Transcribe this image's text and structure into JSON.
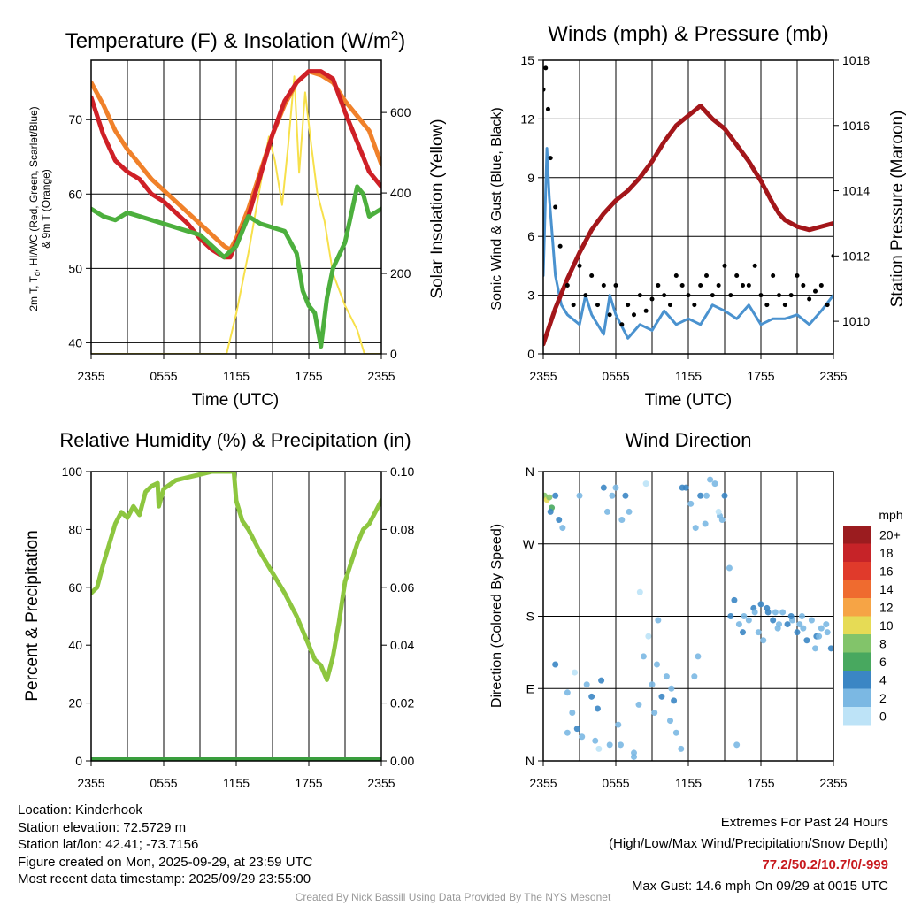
{
  "charts": {
    "temp": {
      "title": "Temperature (F) & Insolation (W/m",
      "title_sup": "2",
      "title_end": ")",
      "xlabel": "Time (UTC)",
      "ylabel_left_line1": "2m T, T",
      "ylabel_left_sub": "d",
      "ylabel_left_rest": ", HI/WC (Red, Green, Scarlet/Blue)",
      "ylabel_left_line2": "& 9m T (Orange)",
      "ylabel_right": "Solar Insolation (Yellow)"
    },
    "wind": {
      "title": "Winds (mph) & Pressure (mb)",
      "xlabel": "Time (UTC)",
      "ylabel_left": "Sonic Wind & Gust (Blue, Black)",
      "ylabel_right": "Station Pressure (Maroon)"
    },
    "rh": {
      "title": "Relative Humidity (%) & Precipitation (in)",
      "ylabel_left": "Percent & Precipitation"
    },
    "dir": {
      "title": "Wind Direction",
      "ylabel_left": "Direction (Colored By Speed)",
      "legend_title": "mph"
    }
  },
  "chart_data": [
    {
      "id": "temp",
      "type": "line",
      "title": "Temperature (F) & Insolation (W/m2)",
      "x_ticks": [
        "2355",
        "0555",
        "1155",
        "1755",
        "2355"
      ],
      "hours_span": 24,
      "ylim": [
        38.5,
        78
      ],
      "y_ticks": [
        "40",
        "50",
        "60",
        "70"
      ],
      "y_tick_values": [
        40,
        50,
        60,
        70
      ],
      "y2lim": [
        0,
        730
      ],
      "y2_ticks": [
        "0",
        "200",
        "400",
        "600"
      ],
      "y2_tick_values": [
        0,
        200,
        400,
        600
      ],
      "series": [
        {
          "name": "9m T",
          "color": "#f0812a",
          "axis": "left",
          "x": [
            0,
            1,
            2,
            3,
            4,
            5,
            6,
            7,
            8,
            9,
            10,
            11,
            11.5,
            12,
            13,
            14,
            15,
            16,
            17,
            18,
            19,
            20,
            21,
            22,
            23,
            24
          ],
          "values": [
            75,
            72,
            68.5,
            66,
            64,
            62,
            60.5,
            59,
            57.5,
            56,
            54.5,
            53,
            52.5,
            54,
            58,
            63,
            68,
            72,
            75,
            76.5,
            76,
            75,
            72.5,
            70.5,
            68.5,
            64
          ]
        },
        {
          "name": "2m T",
          "color": "#cf2027",
          "axis": "left",
          "x": [
            0,
            1,
            2,
            3,
            4,
            5,
            6,
            7,
            8,
            9,
            10,
            11,
            11.5,
            12,
            13,
            14,
            15,
            16,
            17,
            18,
            19,
            20,
            21,
            22,
            23,
            24
          ],
          "values": [
            73,
            68,
            64.5,
            63,
            62,
            60,
            59,
            57.5,
            56,
            54,
            52.5,
            51.5,
            51.5,
            53.5,
            57,
            62.5,
            68,
            72.5,
            75,
            76.5,
            76.5,
            75.5,
            71,
            67,
            63,
            61
          ]
        },
        {
          "name": "Td",
          "color": "#4caf3d",
          "axis": "left",
          "x": [
            0,
            1,
            2,
            3,
            4,
            5,
            6,
            7,
            8,
            9,
            10,
            11,
            12,
            13,
            14,
            15,
            16,
            17,
            17.5,
            18,
            18.5,
            19,
            19.5,
            20,
            21,
            22,
            22.5,
            23,
            24
          ],
          "values": [
            58,
            57,
            56.5,
            57.5,
            57,
            56.5,
            56,
            55.5,
            55,
            54.5,
            53,
            51.5,
            53,
            57,
            56,
            55.5,
            55,
            52,
            47,
            45,
            44,
            39.5,
            46,
            50,
            53.5,
            61,
            60,
            57,
            58
          ]
        },
        {
          "name": "Solar Insolation",
          "color": "#f7e04b",
          "axis": "right",
          "x": [
            0,
            11.2,
            12,
            13,
            14,
            14.7,
            15.2,
            15.8,
            16.3,
            16.8,
            17.2,
            17.7,
            18.2,
            18.7,
            19.3,
            20,
            21,
            22,
            22.6,
            24
          ],
          "values": [
            0,
            0,
            100,
            250,
            420,
            540,
            480,
            370,
            520,
            690,
            450,
            650,
            520,
            400,
            330,
            200,
            120,
            60,
            0,
            0
          ]
        }
      ]
    },
    {
      "id": "wind",
      "type": "scatter",
      "title": "Winds (mph) & Pressure (mb)",
      "x_ticks": [
        "2355",
        "0555",
        "1155",
        "1755",
        "2355"
      ],
      "hours_span": 24,
      "ylim": [
        0,
        15
      ],
      "y_ticks": [
        "0",
        "3",
        "6",
        "9",
        "12",
        "15"
      ],
      "y_tick_values": [
        0,
        3,
        6,
        9,
        12,
        15
      ],
      "y2lim": [
        1009,
        1018
      ],
      "y2_ticks": [
        "1010",
        "1012",
        "1014",
        "1016",
        "1018"
      ],
      "y2_tick_values": [
        1010,
        1012,
        1014,
        1016,
        1018
      ],
      "series": [
        {
          "name": "Station Pressure",
          "color": "#a3161a",
          "axis": "right",
          "x": [
            0,
            1,
            2,
            3,
            4,
            5,
            6,
            7,
            8,
            9,
            10,
            11,
            12,
            13,
            14,
            15,
            16,
            17,
            18,
            19,
            19.5,
            20,
            21,
            22,
            23,
            24
          ],
          "values": [
            1009.3,
            1010.4,
            1011.3,
            1012.1,
            1012.8,
            1013.3,
            1013.7,
            1014.0,
            1014.4,
            1014.9,
            1015.5,
            1016.0,
            1016.3,
            1016.6,
            1016.2,
            1015.9,
            1015.4,
            1014.9,
            1014.3,
            1013.6,
            1013.3,
            1013.1,
            1012.9,
            1012.8,
            1012.9,
            1013.0
          ]
        },
        {
          "name": "Sonic Wind",
          "color": "#4a92cf",
          "axis": "left",
          "x": [
            0,
            0.3,
            0.5,
            1,
            1.5,
            2,
            3,
            3.5,
            4,
            5,
            5.5,
            6,
            7,
            8,
            9,
            10,
            11,
            12,
            13,
            14,
            15,
            16,
            17,
            18,
            19,
            20,
            21,
            22,
            23,
            24
          ],
          "values": [
            4,
            10.5,
            8,
            4,
            2.5,
            2,
            1.5,
            3,
            2,
            1,
            3,
            2,
            0.8,
            1.5,
            1.2,
            2.2,
            1.5,
            1.8,
            1.5,
            2.5,
            2.2,
            1.8,
            2.5,
            1.5,
            1.8,
            1.8,
            2.0,
            1.5,
            2.2,
            3
          ]
        },
        {
          "name": "Gust",
          "color": "#000000",
          "axis": "left",
          "x": [
            0,
            0.2,
            0.4,
            0.6,
            1,
            1.4,
            2,
            2.5,
            3,
            3.5,
            4,
            4.5,
            5,
            5.5,
            6,
            6.5,
            7,
            7.5,
            8,
            8.5,
            9,
            9.5,
            10,
            10.5,
            11,
            11.5,
            12,
            12.5,
            13,
            13.5,
            14,
            14.5,
            15,
            15.5,
            16,
            16.5,
            17,
            17.5,
            18,
            18.5,
            19,
            19.5,
            20,
            20.5,
            21,
            21.5,
            22,
            22.5,
            23,
            23.5,
            24
          ],
          "values": [
            13.5,
            14.6,
            12.5,
            10,
            7.5,
            5.5,
            3.5,
            2.5,
            4.5,
            3,
            4,
            2.5,
            3.5,
            2,
            3.5,
            1.5,
            2.5,
            2,
            3,
            2.2,
            2.8,
            3.5,
            3,
            2.5,
            4,
            3.5,
            3,
            2.5,
            3.5,
            4,
            3,
            3.5,
            4.5,
            3,
            4,
            3.5,
            3.5,
            4.5,
            3,
            2.5,
            4,
            3,
            2.5,
            3,
            4,
            3.5,
            2.8,
            3.2,
            3.5,
            2.5,
            5
          ]
        }
      ]
    },
    {
      "id": "rh",
      "type": "line",
      "title": "Relative Humidity (%) & Precipitation (in)",
      "x_ticks": [
        "2355",
        "0555",
        "1155",
        "1755",
        "2355"
      ],
      "hours_span": 24,
      "ylim": [
        0,
        100
      ],
      "y_ticks": [
        "0",
        "20",
        "40",
        "60",
        "80",
        "100"
      ],
      "y_tick_values": [
        0,
        20,
        40,
        60,
        80,
        100
      ],
      "y2lim": [
        0,
        0.1
      ],
      "y2_ticks": [
        "0.00",
        "0.02",
        "0.04",
        "0.06",
        "0.08",
        "0.10"
      ],
      "y2_tick_values": [
        0,
        0.02,
        0.04,
        0.06,
        0.08,
        0.1
      ],
      "series": [
        {
          "name": "Relative Humidity",
          "color": "#8dc63f",
          "axis": "left",
          "x": [
            0,
            0.5,
            1,
            1.5,
            2,
            2.5,
            3,
            3.5,
            4,
            4.5,
            5,
            5.5,
            5.6,
            6,
            7,
            8,
            9,
            10,
            11,
            11.8,
            12,
            12.5,
            13,
            14,
            15,
            16,
            17,
            18,
            18.5,
            19,
            19.5,
            20,
            20.5,
            21,
            22,
            22.5,
            23,
            23.5,
            24
          ],
          "values": [
            58,
            60,
            68,
            75,
            82,
            86,
            84,
            88,
            85,
            93,
            95,
            96,
            88,
            94,
            97,
            98,
            99,
            100,
            100,
            100,
            90,
            83,
            80,
            72,
            65,
            58,
            50,
            40,
            35,
            33,
            28,
            36,
            48,
            62,
            75,
            80,
            82,
            86,
            90
          ]
        },
        {
          "name": "Precipitation",
          "color": "#3a9e3e",
          "axis": "right",
          "x": [
            0,
            24
          ],
          "values": [
            0,
            0
          ]
        }
      ]
    },
    {
      "id": "dir",
      "type": "scatter",
      "title": "Wind Direction",
      "x_ticks": [
        "2355",
        "0555",
        "1155",
        "1755",
        "2355"
      ],
      "hours_span": 24,
      "y_ticks": [
        "N",
        "E",
        "S",
        "W",
        "N"
      ],
      "y_tick_values": [
        0,
        90,
        180,
        270,
        360
      ],
      "ylim": [
        0,
        360
      ],
      "legend": {
        "title": "mph",
        "bins": [
          "20+",
          "18",
          "16",
          "14",
          "12",
          "10",
          "8",
          "6",
          "4",
          "2",
          "0"
        ],
        "colors": [
          "#9b1c1f",
          "#c62328",
          "#e03a2b",
          "#ef6b2f",
          "#f6a445",
          "#e6db55",
          "#82c46a",
          "#48a85f",
          "#3b86c4",
          "#7bb8e3",
          "#bde3f7"
        ]
      },
      "x": [
        0.1,
        0.3,
        0.5,
        0.7,
        1.0,
        1.3,
        1.6,
        2.0,
        2.4,
        2.8,
        3.2,
        3.6,
        4.0,
        4.3,
        4.6,
        5.0,
        5.3,
        5.7,
        6.0,
        6.4,
        6.8,
        7.1,
        7.5,
        7.9,
        8.3,
        8.7,
        9.0,
        9.4,
        9.8,
        10.2,
        10.6,
        11.0,
        11.4,
        11.8,
        12.2,
        12.6,
        13.0,
        13.4,
        13.8,
        14.2,
        14.6,
        15.0,
        15.4,
        15.8,
        16.2,
        16.6,
        17.0,
        17.4,
        17.8,
        18.2,
        18.6,
        19.0,
        19.4,
        19.8,
        20.2,
        20.6,
        21.0,
        21.4,
        21.8,
        22.2,
        22.6,
        23.0,
        23.4,
        23.8,
        1.0,
        2.0,
        3.0,
        4.5,
        5.5,
        6.5,
        7.5,
        8.5,
        9.5,
        10.5,
        11.5,
        12.5,
        13.5,
        14.5,
        15.5,
        16.5,
        17.5,
        18.5,
        19.5,
        20.5,
        21.5,
        22.5,
        23.5,
        0.6,
        2.6,
        4.8,
        6.2,
        8.0,
        9.2,
        10.8,
        12.8,
        14.8,
        16.0,
        18.0,
        19.2,
        21.2,
        22.8
      ],
      "y": [
        330,
        325,
        328,
        315,
        330,
        300,
        290,
        85,
        60,
        40,
        30,
        95,
        80,
        25,
        15,
        340,
        310,
        330,
        340,
        20,
        330,
        310,
        5,
        70,
        130,
        155,
        95,
        120,
        80,
        105,
        90,
        35,
        15,
        340,
        320,
        290,
        330,
        295,
        350,
        345,
        305,
        330,
        240,
        200,
        170,
        180,
        175,
        190,
        160,
        150,
        185,
        175,
        165,
        185,
        170,
        175,
        160,
        180,
        150,
        175,
        155,
        165,
        170,
        140,
        120,
        35,
        330,
        65,
        20,
        300,
        10,
        345,
        175,
        50,
        340,
        105,
        330,
        310,
        180,
        160,
        185,
        190,
        170,
        180,
        165,
        140,
        160,
        310,
        110,
        100,
        45,
        210,
        60,
        75,
        130,
        300,
        20,
        195,
        185,
        170,
        155
      ],
      "speed": [
        8,
        10,
        9,
        6,
        4,
        4,
        2,
        2,
        2,
        4,
        2,
        2,
        4,
        2,
        1,
        4,
        2,
        2,
        2,
        2,
        4,
        2,
        2,
        2,
        2,
        1,
        2,
        2,
        4,
        2,
        2,
        2,
        2,
        4,
        2,
        2,
        4,
        2,
        2,
        2,
        2,
        4,
        2,
        4,
        2,
        2,
        2,
        4,
        2,
        2,
        4,
        4,
        2,
        2,
        4,
        2,
        4,
        2,
        4,
        2,
        4,
        2,
        2,
        4,
        4,
        2,
        2,
        4,
        2,
        2,
        2,
        1,
        2,
        2,
        4,
        2,
        2,
        1,
        4,
        4,
        2,
        4,
        2,
        4,
        2,
        2,
        2,
        4,
        1,
        4,
        2,
        1,
        2,
        4,
        2,
        2,
        2,
        4,
        2,
        2,
        2
      ]
    }
  ],
  "info": {
    "location": "Location: Kinderhook",
    "elevation": "Station elevation: 72.5729 m",
    "latlon": "Station lat/lon: 42.41; -73.7156",
    "created": "Figure created on Mon, 2025-09-29, at 23:59 UTC",
    "recent": "Most recent data timestamp: 2025/09/29 23:55:00"
  },
  "extremes": {
    "heading": "Extremes For Past 24 Hours",
    "subheading": "(High/Low/Max Wind/Precipitation/Snow Depth)",
    "values": "77.2/50.2/10.7/0/-999",
    "gust": "Max Gust: 14.6 mph On 09/29 at 0015 UTC"
  },
  "credit": "Created By Nick Bassill Using Data Provided By The NYS Mesonet"
}
